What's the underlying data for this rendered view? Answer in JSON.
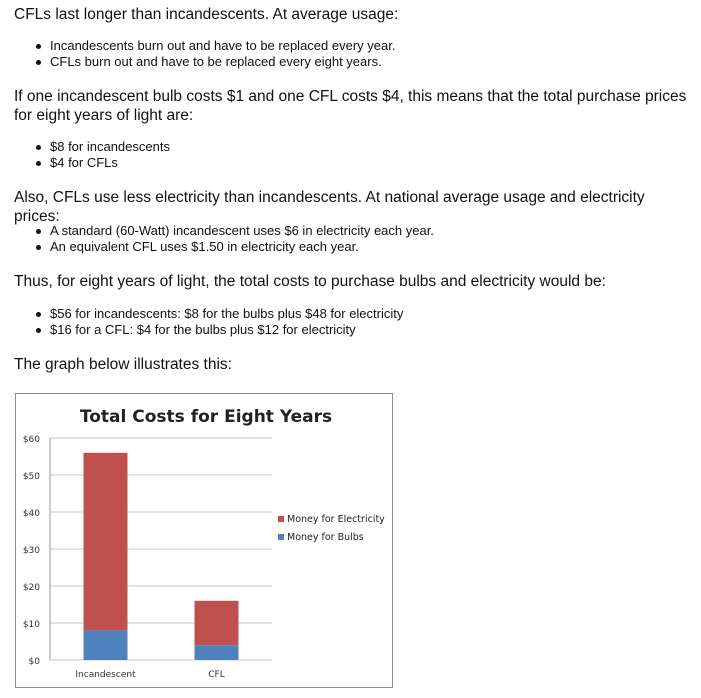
{
  "paragraphs": [
    "CFLs last longer than incandescents. At average usage:",
    "If one incandescent bulb costs $1 and one CFL costs $4, this means that the total purchase prices for eight years of light are:",
    "Also, CFLs use less electricity than incandescents. At national average usage and electricity prices:",
    "Thus, for eight years of light, the total costs to purchase bulbs and electricity would be:",
    "The graph below illustrates this:"
  ],
  "lists": [
    [
      "Incandescents burn out and have to be replaced every year.",
      "CFLs burn out and have to be replaced every eight years."
    ],
    [
      "$8 for incandescents",
      "$4 for CFLs"
    ],
    [
      "A standard (60-Watt) incandescent uses $6 in electricity each year.",
      "An equivalent CFL uses $1.50 in electricity each year."
    ],
    [
      "$56 for incandescents: $8 for the bulbs plus $48 for electricity",
      "$16 for a CFL: $4 for the bulbs plus $12 for electricity"
    ]
  ],
  "chart_data": {
    "type": "bar",
    "stacked": true,
    "title": "Total Costs for Eight Years",
    "xlabel": "",
    "ylabel": "",
    "categories": [
      "Incandescent",
      "CFL"
    ],
    "series": [
      {
        "name": "Money for Bulbs",
        "values": [
          8,
          4
        ],
        "color": "#4f81bd"
      },
      {
        "name": "Money for Electricity",
        "values": [
          48,
          12
        ],
        "color": "#c0504d"
      }
    ],
    "ylim": [
      0,
      60
    ],
    "yticks": [
      0,
      10,
      20,
      30,
      40,
      50,
      60
    ],
    "ytick_labels": [
      "$0",
      "$10",
      "$20",
      "$30",
      "$40",
      "$50",
      "$60"
    ],
    "grid": true,
    "legend": "right"
  }
}
